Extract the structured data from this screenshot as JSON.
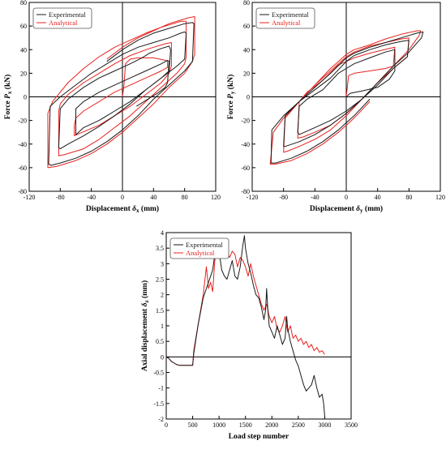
{
  "colors": {
    "experimental": "#1a1a1a",
    "analytical": "#e8231f",
    "axis": "#000000",
    "legend_border": "#555555"
  },
  "chart_data": [
    {
      "type": "line",
      "ylabel": "Force P_x (kN)",
      "ylabel_main": "Force ",
      "ylabel_sym": "P",
      "ylabel_sub": "x",
      "ylabel_unit": " (kN)",
      "xlabel": "Displacement δ_x (mm)",
      "xlabel_main": "Displacement ",
      "xlabel_sym": "δ",
      "xlabel_sub": "x",
      "xlabel_unit": " (mm)",
      "xlim": [
        -120,
        120
      ],
      "ylim": [
        -80,
        80
      ],
      "xticks": [
        -120,
        -80,
        -40,
        0,
        40,
        80,
        120
      ],
      "yticks": [
        -80,
        -60,
        -40,
        -20,
        0,
        20,
        40,
        60,
        80
      ],
      "legend_position": "top-left",
      "series": [
        {
          "name": "Experimental",
          "x": [
            18,
            30,
            45,
            55,
            58,
            60,
            58,
            50,
            30,
            10,
            -10,
            -30,
            -50,
            -60,
            -60,
            -58,
            -50,
            -30,
            -10,
            10,
            30,
            50,
            60,
            62,
            60,
            50,
            35,
            25,
            10,
            -10,
            -30,
            -50,
            -70,
            -80,
            -82,
            -80,
            -70,
            -50,
            -30,
            -10,
            10,
            30,
            50,
            70,
            80,
            82,
            80,
            75,
            60,
            40,
            20,
            0,
            -20,
            -40,
            -60,
            -80,
            -93,
            -95,
            -92,
            -80,
            -60,
            -40,
            -20,
            0,
            20,
            40,
            60,
            80,
            90,
            92,
            90,
            80,
            60,
            40,
            20,
            0,
            -20
          ],
          "y": [
            -8,
            -3,
            3,
            8,
            12,
            30,
            31,
            28,
            22,
            16,
            10,
            4,
            -4,
            -10,
            -32,
            -31,
            -26,
            -20,
            -12,
            -4,
            6,
            16,
            22,
            40,
            43,
            41,
            37,
            33,
            28,
            22,
            16,
            8,
            -2,
            -10,
            -43,
            -44,
            -40,
            -33,
            -25,
            -16,
            -6,
            6,
            16,
            26,
            32,
            54,
            55,
            54,
            50,
            46,
            42,
            36,
            28,
            20,
            10,
            0,
            -8,
            -57,
            -58,
            -56,
            -52,
            -46,
            -38,
            -28,
            -16,
            -2,
            10,
            22,
            30,
            62,
            63,
            62,
            58,
            54,
            48,
            40,
            30
          ]
        },
        {
          "name": "Analytical",
          "x": [
            0,
            2,
            4,
            10,
            20,
            40,
            55,
            58,
            58,
            50,
            30,
            10,
            -10,
            -30,
            -50,
            -60,
            -62,
            -62,
            -55,
            -30,
            -10,
            10,
            30,
            50,
            60,
            63,
            63,
            55,
            35,
            10,
            -10,
            -30,
            -50,
            -70,
            -80,
            -82,
            -82,
            -75,
            -50,
            -30,
            -10,
            10,
            30,
            50,
            70,
            80,
            82,
            82,
            75,
            50,
            30,
            10,
            -10,
            -30,
            -50,
            -70,
            -90,
            -96,
            -96,
            -85,
            -60,
            -40,
            -20,
            0,
            20,
            40,
            60,
            80,
            90,
            93,
            93,
            85,
            60,
            40,
            20,
            0,
            -20
          ],
          "y": [
            0,
            10,
            28,
            32,
            33,
            33,
            31,
            30,
            25,
            22,
            16,
            10,
            4,
            -4,
            -12,
            -18,
            -24,
            -33,
            -31,
            -24,
            -16,
            -8,
            2,
            12,
            20,
            26,
            46,
            45,
            41,
            35,
            28,
            20,
            12,
            2,
            -6,
            -12,
            -50,
            -49,
            -44,
            -36,
            -26,
            -16,
            -4,
            8,
            20,
            28,
            34,
            64,
            64,
            59,
            54,
            48,
            42,
            34,
            24,
            12,
            -4,
            -14,
            -60,
            -59,
            -54,
            -48,
            -40,
            -30,
            -18,
            -6,
            8,
            20,
            30,
            36,
            68,
            67,
            62,
            56,
            50,
            42,
            32
          ]
        }
      ]
    },
    {
      "type": "line",
      "ylabel": "Force P_y (kN)",
      "ylabel_main": "Force ",
      "ylabel_sym": "P",
      "ylabel_sub": "y",
      "ylabel_unit": " (kN)",
      "xlabel": "Displacement δ_y (mm)",
      "xlabel_main": "Displacement ",
      "xlabel_sym": "δ",
      "xlabel_sub": "y",
      "xlabel_unit": " (mm)",
      "xlim": [
        -120,
        120
      ],
      "ylim": [
        -80,
        80
      ],
      "xticks": [
        -120,
        -80,
        -40,
        0,
        40,
        80,
        120
      ],
      "yticks": [
        -80,
        -60,
        -40,
        -20,
        0,
        20,
        40,
        60,
        80
      ],
      "legend_position": "top-left",
      "series": [
        {
          "name": "Experimental",
          "x": [
            0,
            5,
            20,
            40,
            55,
            62,
            62,
            50,
            30,
            10,
            0,
            -10,
            -30,
            -50,
            -60,
            -62,
            -60,
            -40,
            -20,
            0,
            20,
            40,
            60,
            78,
            80,
            70,
            50,
            30,
            10,
            0,
            -20,
            -40,
            -60,
            -78,
            -80,
            -78,
            -60,
            -40,
            -20,
            0,
            20,
            40,
            60,
            80,
            96,
            98,
            90,
            70,
            50,
            30,
            10,
            0,
            -20,
            -40,
            -60,
            -80,
            -95,
            -96,
            -90,
            -70,
            -50,
            -30,
            -10,
            10,
            30
          ],
          "y": [
            0,
            3,
            5,
            8,
            15,
            22,
            40,
            38,
            33,
            28,
            24,
            20,
            6,
            -2,
            -8,
            -30,
            -32,
            -26,
            -20,
            -12,
            -2,
            10,
            24,
            34,
            48,
            47,
            44,
            40,
            35,
            30,
            16,
            6,
            -4,
            -16,
            -42,
            -42,
            -38,
            -32,
            -24,
            -14,
            -2,
            12,
            26,
            38,
            50,
            55,
            54,
            50,
            46,
            42,
            37,
            33,
            20,
            8,
            -4,
            -16,
            -28,
            -56,
            -56,
            -52,
            -46,
            -38,
            -28,
            -16,
            -2
          ]
        },
        {
          "name": "Analytical",
          "x": [
            0,
            3,
            10,
            30,
            50,
            60,
            62,
            55,
            30,
            10,
            0,
            -10,
            -30,
            -50,
            -60,
            -62,
            -55,
            -40,
            -20,
            0,
            20,
            40,
            60,
            78,
            80,
            70,
            50,
            30,
            10,
            0,
            -20,
            -40,
            -60,
            -78,
            -80,
            -75,
            -60,
            -40,
            -20,
            0,
            20,
            40,
            60,
            80,
            93,
            95,
            90,
            70,
            50,
            30,
            10,
            0,
            -20,
            -40,
            -60,
            -80,
            -93,
            -97,
            -90,
            -70,
            -50,
            -30,
            -10,
            10,
            30
          ],
          "y": [
            0,
            18,
            20,
            22,
            24,
            26,
            42,
            41,
            37,
            33,
            30,
            27,
            14,
            4,
            -4,
            -35,
            -34,
            -30,
            -24,
            -14,
            -2,
            12,
            24,
            34,
            50,
            49,
            46,
            43,
            38,
            34,
            22,
            10,
            -4,
            -18,
            -47,
            -46,
            -42,
            -36,
            -28,
            -16,
            -2,
            12,
            26,
            40,
            52,
            56,
            56,
            53,
            49,
            44,
            40,
            36,
            24,
            10,
            -4,
            -18,
            -30,
            -57,
            -57,
            -54,
            -48,
            -40,
            -30,
            -18,
            -4
          ]
        }
      ]
    },
    {
      "type": "line",
      "ylabel": "Axial displacement δ_z (mm)",
      "ylabel_main": "Axial displacement ",
      "ylabel_sym": "δ",
      "ylabel_sub": "z",
      "ylabel_unit": " (mm)",
      "xlabel": "Load step number",
      "xlabel_main": "Load step number",
      "xlabel_sym": "",
      "xlabel_sub": "",
      "xlabel_unit": "",
      "xlim": [
        0,
        3500
      ],
      "ylim": [
        -2,
        4
      ],
      "xticks": [
        0,
        500,
        1000,
        1500,
        2000,
        2500,
        3000,
        3500
      ],
      "yticks": [
        -2,
        -1.5,
        -1,
        -0.5,
        0,
        0.5,
        1,
        1.5,
        2,
        2.5,
        3,
        3.5,
        4
      ],
      "legend_position": "top-left",
      "series": [
        {
          "name": "Experimental",
          "x": [
            0,
            50,
            100,
            150,
            200,
            250,
            300,
            400,
            480,
            500,
            520,
            600,
            700,
            760,
            800,
            840,
            880,
            920,
            960,
            1000,
            1050,
            1100,
            1150,
            1200,
            1250,
            1300,
            1350,
            1400,
            1450,
            1480,
            1500,
            1550,
            1600,
            1650,
            1700,
            1750,
            1800,
            1850,
            1880,
            1900,
            1920,
            1950,
            2000,
            2050,
            2100,
            2150,
            2200,
            2250,
            2280,
            2300,
            2350,
            2400,
            2450,
            2500,
            2550,
            2600,
            2650,
            2700,
            2750,
            2800,
            2850,
            2900,
            2950,
            2980,
            3000
          ],
          "y": [
            0,
            -0.05,
            -0.15,
            -0.2,
            -0.25,
            -0.27,
            -0.27,
            -0.27,
            -0.27,
            -0.27,
            0.1,
            1.0,
            1.9,
            2.2,
            2.4,
            2.6,
            2.8,
            3.3,
            3.6,
            3.4,
            2.8,
            2.6,
            2.5,
            2.8,
            3.1,
            2.6,
            2.5,
            2.9,
            3.6,
            3.9,
            3.5,
            3.0,
            2.7,
            2.3,
            2.0,
            1.9,
            1.6,
            1.2,
            1.5,
            2.2,
            1.6,
            1.0,
            0.8,
            0.6,
            1.0,
            0.7,
            0.4,
            0.6,
            1.3,
            0.9,
            0.5,
            0.2,
            -0.1,
            -0.3,
            -0.6,
            -0.9,
            -1.1,
            -1.0,
            -0.9,
            -0.6,
            -1.0,
            -1.3,
            -1.2,
            -1.5,
            -1.9
          ]
        },
        {
          "name": "Analytical",
          "x": [
            0,
            50,
            100,
            150,
            200,
            250,
            300,
            400,
            480,
            500,
            520,
            600,
            700,
            760,
            800,
            840,
            880,
            920,
            960,
            1000,
            1050,
            1100,
            1150,
            1200,
            1250,
            1300,
            1350,
            1400,
            1450,
            1500,
            1550,
            1600,
            1650,
            1700,
            1750,
            1800,
            1850,
            1900,
            1950,
            2000,
            2050,
            2100,
            2150,
            2200,
            2250,
            2300,
            2350,
            2400,
            2450,
            2500,
            2550,
            2600,
            2650,
            2700,
            2750,
            2800,
            2850,
            2900,
            2950,
            3000
          ],
          "y": [
            0,
            -0.05,
            -0.15,
            -0.2,
            -0.25,
            -0.27,
            -0.27,
            -0.27,
            -0.27,
            -0.27,
            0.2,
            1.0,
            2.0,
            2.9,
            2.2,
            2.4,
            2.1,
            3.1,
            3.6,
            3.3,
            3.4,
            3.3,
            3.4,
            3.2,
            3.4,
            3.3,
            2.9,
            3.2,
            3.1,
            2.9,
            2.6,
            3.0,
            2.6,
            2.3,
            2.0,
            1.7,
            1.5,
            1.7,
            1.3,
            1.1,
            1.3,
            0.9,
            0.8,
            1.0,
            1.3,
            0.8,
            1.0,
            0.6,
            0.7,
            0.5,
            0.6,
            0.4,
            0.5,
            0.3,
            0.4,
            0.2,
            0.3,
            0.15,
            0.2,
            0.08
          ]
        }
      ]
    }
  ]
}
